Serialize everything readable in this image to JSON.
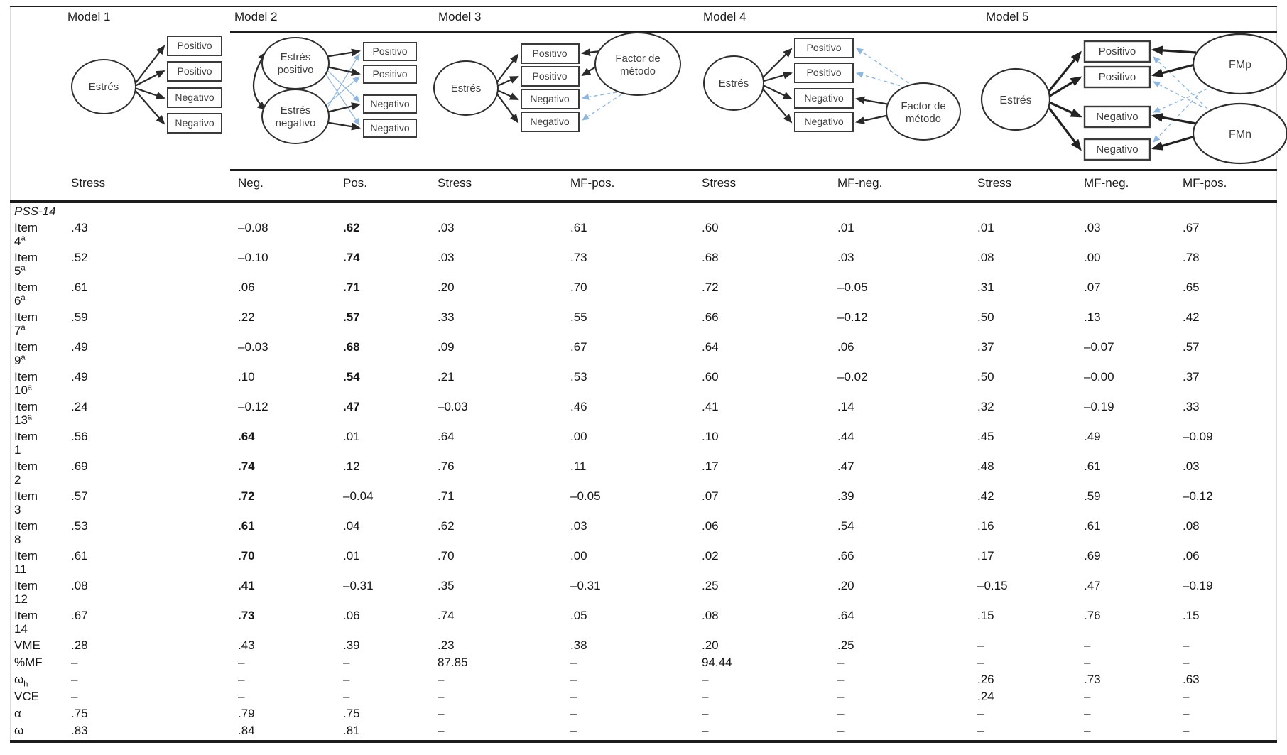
{
  "figure": {
    "models": [
      "Model 1",
      "Model 2",
      "Model 3",
      "Model 4",
      "Model 5"
    ],
    "diagram": {
      "box_labels": [
        "Positivo",
        "Positivo",
        "Negativo",
        "Negativo"
      ],
      "latent_stress": "Estrés",
      "latent_stress_pos": [
        "Estrés",
        "positivo"
      ],
      "latent_stress_neg": [
        "Estrés",
        "negativo"
      ],
      "method_factor": [
        "Factor de",
        "método"
      ],
      "fmp": "FMp",
      "fmn": "FMn",
      "colors": {
        "main_loading_arrow": "#2a2a2a",
        "cross_loading_line": "#8fb6dd",
        "box_border": "#3a3a3a"
      }
    }
  },
  "table": {
    "col_headers": [
      "Stress",
      "Neg.",
      "Pos.",
      "Stress",
      "MF-pos.",
      "Stress",
      "MF-neg.",
      "Stress",
      "MF-neg.",
      "MF-pos."
    ],
    "section_label": "PSS-14",
    "rows": [
      {
        "label": "Item",
        "label2": "4",
        "sup": "a",
        "values": [
          ".43",
          "–0.08",
          ".62",
          ".03",
          ".61",
          ".60",
          ".01",
          ".01",
          ".03",
          ".67"
        ],
        "bold": [
          2
        ]
      },
      {
        "label": "Item",
        "label2": "5",
        "sup": "a",
        "values": [
          ".52",
          "–0.10",
          ".74",
          ".03",
          ".73",
          ".68",
          ".03",
          ".08",
          ".00",
          ".78"
        ],
        "bold": [
          2
        ]
      },
      {
        "label": "Item",
        "label2": "6",
        "sup": "a",
        "values": [
          ".61",
          ".06",
          ".71",
          ".20",
          ".70",
          ".72",
          "–0.05",
          ".31",
          ".07",
          ".65"
        ],
        "bold": [
          2
        ]
      },
      {
        "label": "Item",
        "label2": "7",
        "sup": "a",
        "values": [
          ".59",
          ".22",
          ".57",
          ".33",
          ".55",
          ".66",
          "–0.12",
          ".50",
          ".13",
          ".42"
        ],
        "bold": [
          2
        ]
      },
      {
        "label": "Item",
        "label2": "9",
        "sup": "a",
        "values": [
          ".49",
          "–0.03",
          ".68",
          ".09",
          ".67",
          ".64",
          ".06",
          ".37",
          "–0.07",
          ".57"
        ],
        "bold": [
          2
        ]
      },
      {
        "label": "Item",
        "label2": "10",
        "sup": "a",
        "values": [
          ".49",
          ".10",
          ".54",
          ".21",
          ".53",
          ".60",
          "–0.02",
          ".50",
          "–0.00",
          ".37"
        ],
        "bold": [
          2
        ]
      },
      {
        "label": "Item",
        "label2": "13",
        "sup": "a",
        "values": [
          ".24",
          "–0.12",
          ".47",
          "–0.03",
          ".46",
          ".41",
          ".14",
          ".32",
          "–0.19",
          ".33"
        ],
        "bold": [
          2
        ]
      },
      {
        "label": "Item",
        "label2": "1",
        "values": [
          ".56",
          ".64",
          ".01",
          ".64",
          ".00",
          ".10",
          ".44",
          ".45",
          ".49",
          "–0.09"
        ],
        "bold": [
          1
        ]
      },
      {
        "label": "Item",
        "label2": "2",
        "values": [
          ".69",
          ".74",
          ".12",
          ".76",
          ".11",
          ".17",
          ".47",
          ".48",
          ".61",
          ".03"
        ],
        "bold": [
          1
        ]
      },
      {
        "label": "Item",
        "label2": "3",
        "values": [
          ".57",
          ".72",
          "–0.04",
          ".71",
          "–0.05",
          ".07",
          ".39",
          ".42",
          ".59",
          "–0.12"
        ],
        "bold": [
          1
        ]
      },
      {
        "label": "Item",
        "label2": "8",
        "values": [
          ".53",
          ".61",
          ".04",
          ".62",
          ".03",
          ".06",
          ".54",
          ".16",
          ".61",
          ".08"
        ],
        "bold": [
          1
        ]
      },
      {
        "label": "Item",
        "label2": "11",
        "values": [
          ".61",
          ".70",
          ".01",
          ".70",
          ".00",
          ".02",
          ".66",
          ".17",
          ".69",
          ".06"
        ],
        "bold": [
          1
        ]
      },
      {
        "label": "Item",
        "label2": "12",
        "values": [
          ".08",
          ".41",
          "–0.31",
          ".35",
          "–0.31",
          ".25",
          ".20",
          "–0.15",
          ".47",
          "–0.19"
        ],
        "bold": [
          1
        ]
      },
      {
        "label": "Item",
        "label2": "14",
        "values": [
          ".67",
          ".73",
          ".06",
          ".74",
          ".05",
          ".08",
          ".64",
          ".15",
          ".76",
          ".15"
        ],
        "bold": [
          1
        ]
      },
      {
        "label": "VME",
        "values": [
          ".28",
          ".43",
          ".39",
          ".23",
          ".38",
          ".20",
          ".25",
          "–",
          "–",
          "–"
        ]
      },
      {
        "label": "%MF",
        "values": [
          "–",
          "–",
          "–",
          "87.85",
          "–",
          "94.44",
          "–",
          "–",
          "–",
          "–"
        ]
      },
      {
        "label": "ω",
        "sub": "h",
        "values": [
          "–",
          "–",
          "–",
          "–",
          "–",
          "–",
          "–",
          ".26",
          ".73",
          ".63"
        ]
      },
      {
        "label": "VCE",
        "values": [
          "–",
          "–",
          "–",
          "–",
          "–",
          "–",
          "–",
          ".24",
          "–",
          "–"
        ]
      },
      {
        "label": "α",
        "values": [
          ".75",
          ".79",
          ".75",
          "–",
          "–",
          "–",
          "–",
          "–",
          "–",
          "–"
        ]
      },
      {
        "label": "ω",
        "values": [
          ".83",
          ".84",
          ".81",
          "–",
          "–",
          "–",
          "–",
          "–",
          "–",
          "–"
        ]
      }
    ]
  }
}
